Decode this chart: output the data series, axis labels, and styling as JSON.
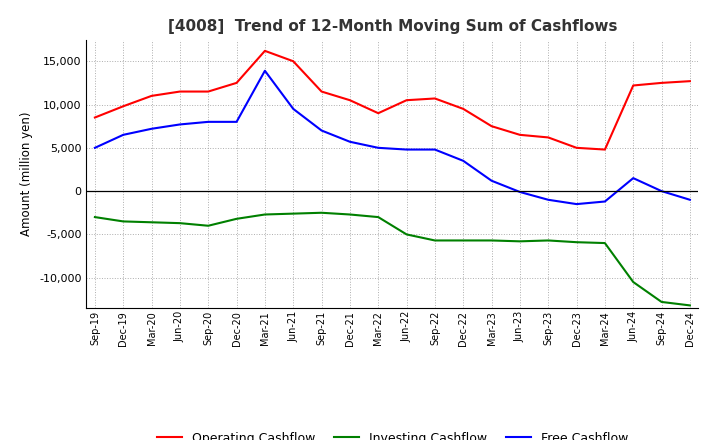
{
  "title": "[4008]  Trend of 12-Month Moving Sum of Cashflows",
  "ylabel": "Amount (million yen)",
  "x_labels": [
    "Sep-19",
    "Dec-19",
    "Mar-20",
    "Jun-20",
    "Sep-20",
    "Dec-20",
    "Mar-21",
    "Jun-21",
    "Sep-21",
    "Dec-21",
    "Mar-22",
    "Jun-22",
    "Sep-22",
    "Dec-22",
    "Mar-23",
    "Jun-23",
    "Sep-23",
    "Dec-23",
    "Mar-24",
    "Jun-24",
    "Sep-24",
    "Dec-24"
  ],
  "operating": [
    8500,
    9800,
    11000,
    11500,
    11500,
    12500,
    16200,
    15000,
    11500,
    10500,
    9000,
    10500,
    10700,
    9500,
    7500,
    6500,
    6200,
    5000,
    4800,
    12200,
    12500,
    12700
  ],
  "investing": [
    -3000,
    -3500,
    -3600,
    -3700,
    -4000,
    -3200,
    -2700,
    -2600,
    -2500,
    -2700,
    -3000,
    -5000,
    -5700,
    -5700,
    -5700,
    -5800,
    -5700,
    -5900,
    -6000,
    -10500,
    -12800,
    -13200
  ],
  "free": [
    5000,
    6500,
    7200,
    7700,
    8000,
    8000,
    13900,
    9500,
    7000,
    5700,
    5000,
    4800,
    4800,
    3500,
    1200,
    -100,
    -1000,
    -1500,
    -1200,
    1500,
    0,
    -1000
  ],
  "operating_color": "#ff0000",
  "investing_color": "#008000",
  "free_color": "#0000ff",
  "background_color": "#ffffff",
  "grid_color": "#999999",
  "ylim": [
    -13500,
    17500
  ],
  "yticks": [
    -10000,
    -5000,
    0,
    5000,
    10000,
    15000
  ]
}
